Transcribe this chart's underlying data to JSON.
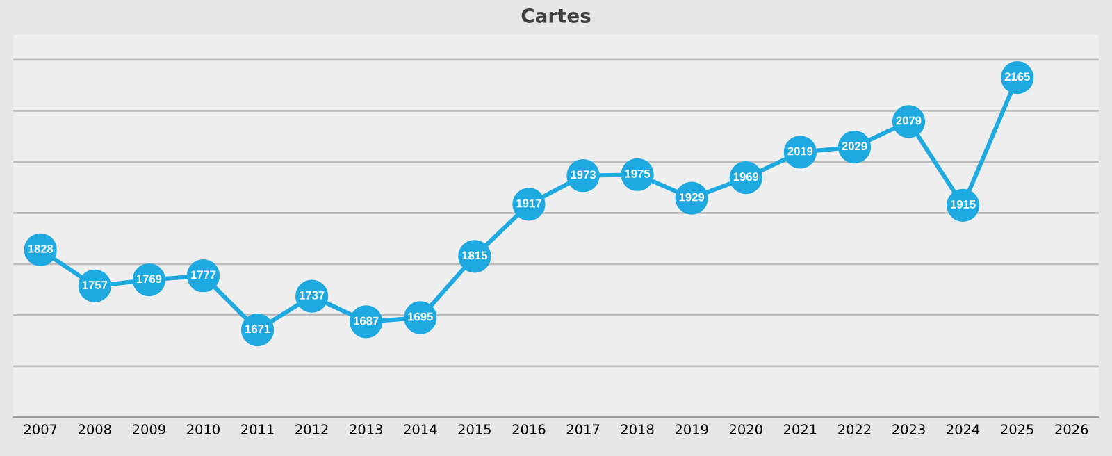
{
  "chart_data": {
    "type": "line",
    "title": "Cartes",
    "categories": [
      "2007",
      "2008",
      "2009",
      "2010",
      "2011",
      "2012",
      "2013",
      "2014",
      "2015",
      "2016",
      "2017",
      "2018",
      "2019",
      "2020",
      "2021",
      "2022",
      "2023",
      "2024",
      "2025",
      "2026"
    ],
    "series": [
      {
        "color": "#1ea9e1",
        "values": [
          1828,
          1757,
          1769,
          1777,
          1671,
          1737,
          1687,
          1695,
          1815,
          1917,
          1973,
          1975,
          1929,
          1969,
          2019,
          2029,
          2079,
          1915,
          2165,
          null
        ]
      }
    ],
    "ylim": [
      1500,
      2250
    ],
    "yticks": [
      {
        "value": 1500,
        "label": null
      },
      {
        "value": 1600,
        "label": null
      },
      {
        "value": 1700,
        "label": null
      },
      {
        "value": 1800,
        "label": null
      },
      {
        "value": 1900,
        "label": null
      },
      {
        "value": 2000,
        "label": null
      },
      {
        "value": 2100,
        "label": null
      },
      {
        "value": 2200,
        "label": null
      }
    ],
    "grid": "y",
    "marker": "circle",
    "line_style": "solid",
    "data_labels": true,
    "tick_labels": "x"
  }
}
